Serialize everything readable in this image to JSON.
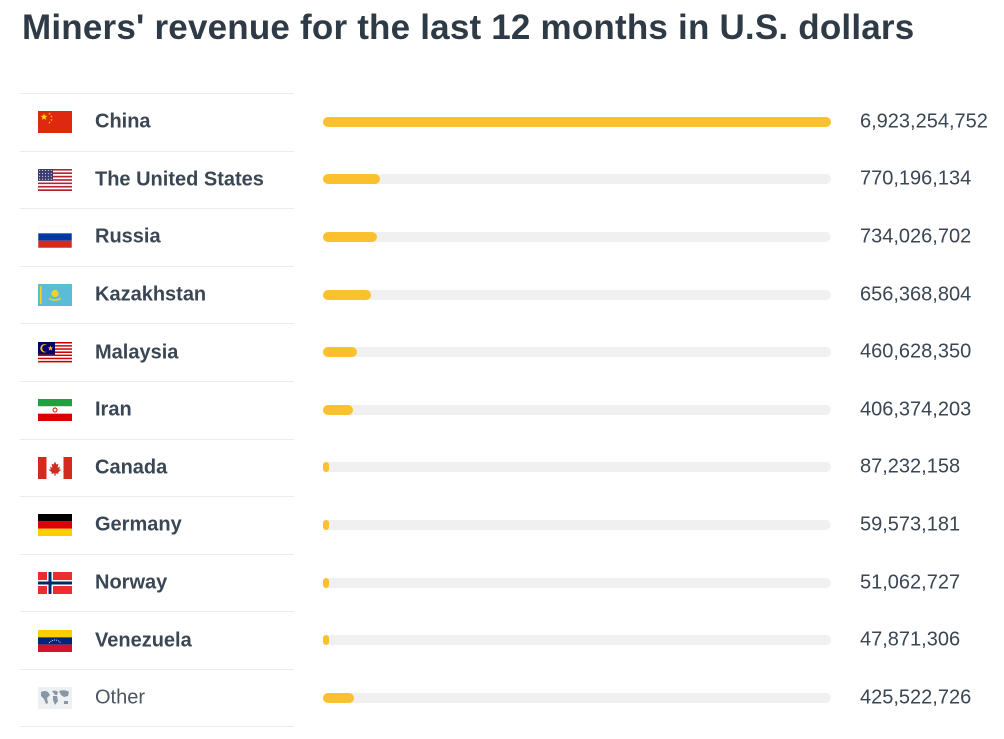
{
  "chart_data": {
    "type": "bar",
    "orientation": "horizontal",
    "title": "Miners' revenue for the last 12 months in U.S. dollars",
    "xlabel": "",
    "ylabel": "",
    "xlim": [
      0,
      6923254752
    ],
    "categories": [
      "China",
      "The United States",
      "Russia",
      "Kazakhstan",
      "Malaysia",
      "Iran",
      "Canada",
      "Germany",
      "Norway",
      "Venezuela",
      "Other"
    ],
    "values": [
      6923254752,
      770196134,
      734026702,
      656368804,
      460628350,
      406374203,
      87232158,
      59573181,
      51062727,
      47871306,
      425522726
    ],
    "value_labels": [
      "6,923,254,752",
      "770,196,134",
      "734,026,702",
      "656,368,804",
      "460,628,350",
      "406,374,203",
      "87,232,158",
      "59,573,181",
      "51,062,727",
      "47,871,306",
      "425,522,726"
    ],
    "flags": [
      "china-flag-icon",
      "usa-flag-icon",
      "russia-flag-icon",
      "kazakhstan-flag-icon",
      "malaysia-flag-icon",
      "iran-flag-icon",
      "canada-flag-icon",
      "germany-flag-icon",
      "norway-flag-icon",
      "venezuela-flag-icon",
      "world-map-icon"
    ],
    "colors": {
      "bar": "#fbc02d",
      "track": "#f0f0f0"
    }
  }
}
